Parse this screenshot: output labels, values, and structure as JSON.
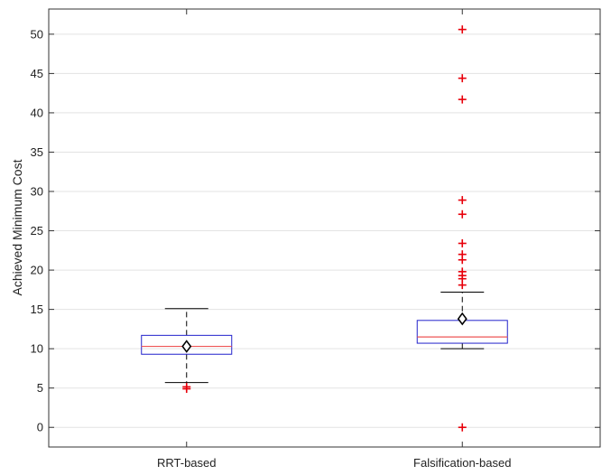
{
  "chart_data": {
    "type": "boxplot",
    "title": "",
    "xlabel": "",
    "ylabel": "Achieved Minimum Cost",
    "ylim": [
      -2.5,
      53.2
    ],
    "yticks": [
      0,
      5,
      10,
      15,
      20,
      25,
      30,
      35,
      40,
      45,
      50
    ],
    "grid": "y",
    "categories": [
      "RRT-based",
      "Falsification-based"
    ],
    "boxes": [
      {
        "category": "RRT-based",
        "q1": 9.3,
        "median": 10.3,
        "q3": 11.7,
        "whisker_low": 5.7,
        "whisker_high": 15.1,
        "mean": 10.3,
        "outliers": [
          4.9,
          5.15
        ]
      },
      {
        "category": "Falsification-based",
        "q1": 10.7,
        "median": 11.5,
        "q3": 13.6,
        "whisker_low": 10.0,
        "whisker_high": 17.2,
        "mean": 13.8,
        "outliers": [
          0.0,
          18.1,
          18.9,
          19.3,
          19.8,
          21.3,
          22.0,
          23.4,
          27.1,
          28.9,
          41.7,
          44.4,
          50.6
        ]
      }
    ],
    "colors": {
      "box": "#2222cc",
      "median": "#ee5555",
      "whisker": "#000000",
      "outlier": "#e8000b",
      "mean": "#000000",
      "grid": "#e3e3e3",
      "axis": "#333333"
    }
  }
}
